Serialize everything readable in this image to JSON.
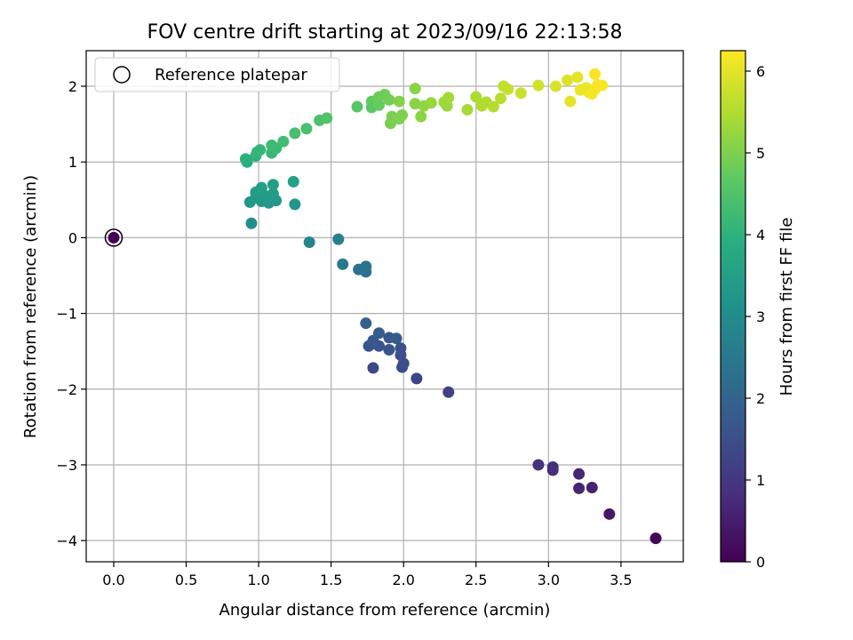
{
  "chart_data": {
    "type": "scatter",
    "title": "FOV centre drift starting at 2023/09/16 22:13:58",
    "xlabel": "Angular distance from reference (arcmin)",
    "ylabel": "Rotation from reference (arcmin)",
    "colorbar_label": "Hours from first FF file",
    "xlim": [
      -0.19,
      3.93
    ],
    "ylim": [
      -4.28,
      2.47
    ],
    "xticks": [
      "0.0",
      "0.5",
      "1.0",
      "1.5",
      "2.0",
      "2.5",
      "3.0",
      "3.5"
    ],
    "yticks": [
      "−4",
      "−3",
      "−2",
      "−1",
      "0",
      "1",
      "2"
    ],
    "colorbar_range": [
      0,
      6.25
    ],
    "colorbar_ticks": [
      "0",
      "1",
      "2",
      "3",
      "4",
      "5",
      "6"
    ],
    "colormap": "viridis",
    "grid": true,
    "legend": {
      "placement": "top-left",
      "entries": [
        "Reference platepar"
      ]
    },
    "reference_point": {
      "x": 0.0,
      "y": 0.0,
      "c": 0.0
    },
    "points": [
      {
        "x": 3.74,
        "y": -3.97,
        "c": 0.1
      },
      {
        "x": 3.42,
        "y": -3.65,
        "c": 0.4
      },
      {
        "x": 3.3,
        "y": -3.3,
        "c": 0.6
      },
      {
        "x": 3.21,
        "y": -3.31,
        "c": 0.65
      },
      {
        "x": 3.21,
        "y": -3.12,
        "c": 0.7
      },
      {
        "x": 3.03,
        "y": -3.07,
        "c": 0.8
      },
      {
        "x": 3.03,
        "y": -3.03,
        "c": 0.85
      },
      {
        "x": 2.93,
        "y": -3.0,
        "c": 0.9
      },
      {
        "x": 2.31,
        "y": -2.04,
        "c": 1.2
      },
      {
        "x": 2.09,
        "y": -1.86,
        "c": 1.3
      },
      {
        "x": 1.99,
        "y": -1.71,
        "c": 1.4
      },
      {
        "x": 1.79,
        "y": -1.72,
        "c": 1.4
      },
      {
        "x": 2.0,
        "y": -1.66,
        "c": 1.45
      },
      {
        "x": 1.98,
        "y": -1.55,
        "c": 1.5
      },
      {
        "x": 1.98,
        "y": -1.46,
        "c": 1.55
      },
      {
        "x": 1.9,
        "y": -1.48,
        "c": 1.6
      },
      {
        "x": 1.83,
        "y": -1.43,
        "c": 1.6
      },
      {
        "x": 1.76,
        "y": -1.43,
        "c": 1.65
      },
      {
        "x": 1.79,
        "y": -1.36,
        "c": 1.7
      },
      {
        "x": 1.9,
        "y": -1.32,
        "c": 1.7
      },
      {
        "x": 1.95,
        "y": -1.33,
        "c": 1.75
      },
      {
        "x": 1.83,
        "y": -1.26,
        "c": 1.8
      },
      {
        "x": 1.74,
        "y": -1.13,
        "c": 1.9
      },
      {
        "x": 1.74,
        "y": -0.45,
        "c": 2.3
      },
      {
        "x": 1.69,
        "y": -0.42,
        "c": 2.35
      },
      {
        "x": 1.74,
        "y": -0.38,
        "c": 2.4
      },
      {
        "x": 1.58,
        "y": -0.35,
        "c": 2.5
      },
      {
        "x": 1.55,
        "y": -0.02,
        "c": 2.7
      },
      {
        "x": 1.35,
        "y": -0.06,
        "c": 2.8
      },
      {
        "x": 0.95,
        "y": 0.19,
        "c": 3.1
      },
      {
        "x": 1.25,
        "y": 0.44,
        "c": 3.25
      },
      {
        "x": 0.94,
        "y": 0.47,
        "c": 3.3
      },
      {
        "x": 1.02,
        "y": 0.48,
        "c": 3.3
      },
      {
        "x": 1.07,
        "y": 0.46,
        "c": 3.35
      },
      {
        "x": 1.12,
        "y": 0.49,
        "c": 3.35
      },
      {
        "x": 0.98,
        "y": 0.53,
        "c": 3.4
      },
      {
        "x": 1.05,
        "y": 0.55,
        "c": 3.4
      },
      {
        "x": 1.1,
        "y": 0.58,
        "c": 3.45
      },
      {
        "x": 0.98,
        "y": 0.6,
        "c": 3.45
      },
      {
        "x": 1.02,
        "y": 0.66,
        "c": 3.5
      },
      {
        "x": 1.1,
        "y": 0.7,
        "c": 3.5
      },
      {
        "x": 1.24,
        "y": 0.74,
        "c": 3.55
      },
      {
        "x": 0.92,
        "y": 1.0,
        "c": 3.9
      },
      {
        "x": 0.91,
        "y": 1.04,
        "c": 3.95
      },
      {
        "x": 0.98,
        "y": 1.08,
        "c": 4.0
      },
      {
        "x": 0.99,
        "y": 1.13,
        "c": 4.05
      },
      {
        "x": 1.01,
        "y": 1.16,
        "c": 4.1
      },
      {
        "x": 1.09,
        "y": 1.12,
        "c": 4.15
      },
      {
        "x": 1.12,
        "y": 1.18,
        "c": 4.2
      },
      {
        "x": 1.09,
        "y": 1.22,
        "c": 4.25
      },
      {
        "x": 1.17,
        "y": 1.27,
        "c": 4.3
      },
      {
        "x": 1.25,
        "y": 1.38,
        "c": 4.35
      },
      {
        "x": 1.33,
        "y": 1.44,
        "c": 4.4
      },
      {
        "x": 1.42,
        "y": 1.55,
        "c": 4.45
      },
      {
        "x": 1.47,
        "y": 1.58,
        "c": 4.5
      },
      {
        "x": 1.68,
        "y": 1.73,
        "c": 4.6
      },
      {
        "x": 1.78,
        "y": 1.72,
        "c": 4.65
      },
      {
        "x": 1.78,
        "y": 1.8,
        "c": 4.7
      },
      {
        "x": 1.83,
        "y": 1.75,
        "c": 4.75
      },
      {
        "x": 1.83,
        "y": 1.86,
        "c": 4.8
      },
      {
        "x": 1.87,
        "y": 1.89,
        "c": 4.85
      },
      {
        "x": 1.9,
        "y": 1.82,
        "c": 4.9
      },
      {
        "x": 1.92,
        "y": 1.6,
        "c": 4.95
      },
      {
        "x": 1.91,
        "y": 1.51,
        "c": 4.95
      },
      {
        "x": 1.97,
        "y": 1.57,
        "c": 5.0
      },
      {
        "x": 1.99,
        "y": 1.62,
        "c": 5.0
      },
      {
        "x": 1.97,
        "y": 1.8,
        "c": 5.05
      },
      {
        "x": 2.08,
        "y": 1.77,
        "c": 5.1
      },
      {
        "x": 2.08,
        "y": 1.97,
        "c": 5.1
      },
      {
        "x": 2.12,
        "y": 1.6,
        "c": 5.15
      },
      {
        "x": 2.14,
        "y": 1.74,
        "c": 5.2
      },
      {
        "x": 2.19,
        "y": 1.78,
        "c": 5.25
      },
      {
        "x": 2.28,
        "y": 1.79,
        "c": 5.3
      },
      {
        "x": 2.3,
        "y": 1.74,
        "c": 5.3
      },
      {
        "x": 2.31,
        "y": 1.85,
        "c": 5.35
      },
      {
        "x": 2.44,
        "y": 1.69,
        "c": 5.4
      },
      {
        "x": 2.5,
        "y": 1.86,
        "c": 5.45
      },
      {
        "x": 2.54,
        "y": 1.74,
        "c": 5.5
      },
      {
        "x": 2.57,
        "y": 1.79,
        "c": 5.5
      },
      {
        "x": 2.62,
        "y": 1.73,
        "c": 5.55
      },
      {
        "x": 2.67,
        "y": 1.84,
        "c": 5.6
      },
      {
        "x": 2.69,
        "y": 2.0,
        "c": 5.65
      },
      {
        "x": 2.72,
        "y": 1.96,
        "c": 5.7
      },
      {
        "x": 2.81,
        "y": 1.91,
        "c": 5.75
      },
      {
        "x": 2.93,
        "y": 2.01,
        "c": 5.8
      },
      {
        "x": 3.05,
        "y": 2.0,
        "c": 5.9
      },
      {
        "x": 3.13,
        "y": 2.08,
        "c": 5.95
      },
      {
        "x": 3.15,
        "y": 1.8,
        "c": 6.0
      },
      {
        "x": 3.2,
        "y": 2.12,
        "c": 6.0
      },
      {
        "x": 3.22,
        "y": 1.95,
        "c": 6.05
      },
      {
        "x": 3.26,
        "y": 1.98,
        "c": 6.1
      },
      {
        "x": 3.28,
        "y": 1.92,
        "c": 6.1
      },
      {
        "x": 3.3,
        "y": 1.9,
        "c": 6.15
      },
      {
        "x": 3.32,
        "y": 1.96,
        "c": 6.15
      },
      {
        "x": 3.34,
        "y": 2.02,
        "c": 6.2
      },
      {
        "x": 3.32,
        "y": 2.16,
        "c": 6.2
      },
      {
        "x": 3.37,
        "y": 2.01,
        "c": 6.2
      }
    ]
  }
}
